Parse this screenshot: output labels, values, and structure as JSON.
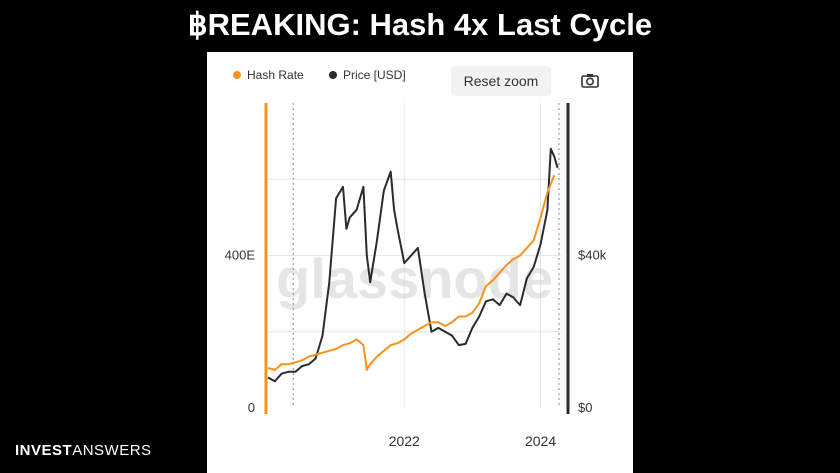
{
  "headline": {
    "text": "฿REAKING: Hash 4x Last Cycle"
  },
  "toolbar": {
    "reset_label": "Reset zoom",
    "camera_icon": "camera-icon"
  },
  "brand": {
    "bold": "INVEST",
    "light": "ANSWERS"
  },
  "watermark": "glassnode",
  "colors": {
    "hash": "#f7931a",
    "price": "#2b2b2b",
    "grid": "#e6e6e6",
    "background": "#000000"
  },
  "chart_data": {
    "type": "line",
    "title": "",
    "legend": [
      "Hash Rate",
      "Price [USD]"
    ],
    "legend_position": "top-left",
    "grid": true,
    "x_ticks": [
      "2022",
      "2024"
    ],
    "x_range": [
      2020.0,
      2024.3
    ],
    "y_left": {
      "ticks": [
        "0",
        "400E"
      ],
      "tick_values": [
        0,
        400
      ],
      "range": [
        0,
        800
      ],
      "unit": "EH/s"
    },
    "y_right": {
      "ticks": [
        "$0",
        "$40k"
      ],
      "tick_values": [
        0,
        40000
      ],
      "range": [
        0,
        80000
      ],
      "unit": "USD"
    },
    "series": [
      {
        "name": "Hash Rate",
        "axis": "left",
        "x": [
          2020.0,
          2020.1,
          2020.2,
          2020.3,
          2020.4,
          2020.5,
          2020.6,
          2020.7,
          2020.8,
          2020.9,
          2021.0,
          2021.1,
          2021.2,
          2021.3,
          2021.4,
          2021.45,
          2021.5,
          2021.6,
          2021.7,
          2021.8,
          2021.9,
          2022.0,
          2022.1,
          2022.2,
          2022.3,
          2022.4,
          2022.5,
          2022.6,
          2022.7,
          2022.8,
          2022.9,
          2023.0,
          2023.1,
          2023.2,
          2023.3,
          2023.4,
          2023.5,
          2023.6,
          2023.7,
          2023.8,
          2023.9,
          2024.0,
          2024.1,
          2024.2
        ],
        "values": [
          105,
          100,
          115,
          115,
          120,
          125,
          135,
          140,
          145,
          150,
          155,
          165,
          170,
          180,
          165,
          100,
          115,
          135,
          150,
          165,
          170,
          180,
          195,
          205,
          215,
          225,
          225,
          215,
          225,
          240,
          240,
          250,
          275,
          320,
          335,
          355,
          375,
          390,
          400,
          420,
          440,
          500,
          565,
          610
        ]
      },
      {
        "name": "Price [USD]",
        "axis": "right",
        "x": [
          2020.0,
          2020.1,
          2020.2,
          2020.3,
          2020.4,
          2020.5,
          2020.6,
          2020.7,
          2020.8,
          2020.9,
          2021.0,
          2021.1,
          2021.15,
          2021.2,
          2021.3,
          2021.4,
          2021.45,
          2021.5,
          2021.6,
          2021.7,
          2021.8,
          2021.85,
          2021.9,
          2022.0,
          2022.1,
          2022.2,
          2022.3,
          2022.4,
          2022.5,
          2022.6,
          2022.7,
          2022.8,
          2022.9,
          2023.0,
          2023.1,
          2023.2,
          2023.3,
          2023.4,
          2023.5,
          2023.6,
          2023.7,
          2023.8,
          2023.9,
          2024.0,
          2024.1,
          2024.15,
          2024.2,
          2024.25
        ],
        "values": [
          8000,
          7000,
          9000,
          9500,
          9500,
          11000,
          11500,
          13000,
          19000,
          33000,
          55000,
          58000,
          47000,
          50000,
          52000,
          58000,
          40000,
          33000,
          44000,
          57000,
          62000,
          52000,
          47000,
          38000,
          40000,
          42000,
          30000,
          20000,
          21000,
          20000,
          19000,
          16500,
          16800,
          21000,
          24000,
          28000,
          28500,
          27000,
          30000,
          29000,
          27000,
          34000,
          37000,
          43000,
          52000,
          68000,
          66000,
          63000
        ]
      }
    ],
    "markers": [
      {
        "type": "dotted-vertical",
        "x": 2020.37
      },
      {
        "type": "dotted-vertical",
        "x": 2024.27
      }
    ]
  }
}
